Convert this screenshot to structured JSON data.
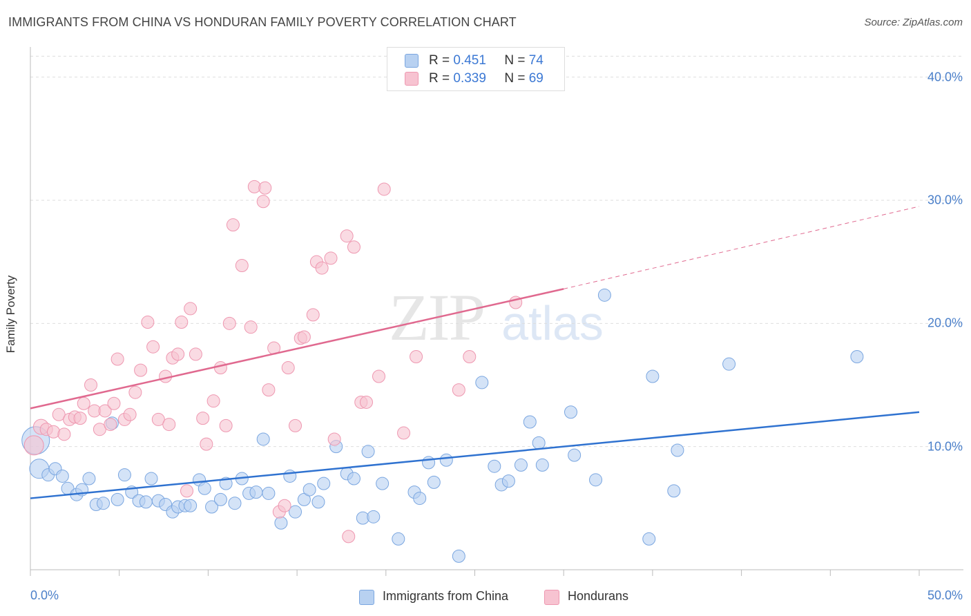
{
  "title": "IMMIGRANTS FROM CHINA VS HONDURAN FAMILY POVERTY CORRELATION CHART",
  "source": "Source: ZipAtlas.com",
  "watermark": {
    "zip": "ZIP",
    "atlas": "atlas"
  },
  "legend_top": {
    "rows": [
      {
        "r_label": "R =",
        "r_value": "0.451",
        "n_label": "N =",
        "n_value": "74"
      },
      {
        "r_label": "R =",
        "r_value": "0.339",
        "n_label": "N =",
        "n_value": "69"
      }
    ]
  },
  "legend_bottom": [
    "Immigrants from China",
    "Hondurans"
  ],
  "colors": {
    "china_fill": "#b8d1f1",
    "china_stroke": "#7aa6e0",
    "china_line": "#2f72d0",
    "honduran_fill": "#f7c3d1",
    "honduran_stroke": "#ee97b0",
    "honduran_line": "#e0698f",
    "tick_text": "#4a7fc9",
    "grid": "#dddddd"
  },
  "chart_data": {
    "type": "scatter",
    "title": "IMMIGRANTS FROM CHINA VS HONDURAN FAMILY POVERTY CORRELATION CHART",
    "xlabel": "",
    "ylabel": "Family Poverty",
    "xlim": [
      0,
      50
    ],
    "ylim": [
      0,
      42
    ],
    "x_tick_labels": [
      "0.0%",
      "50.0%"
    ],
    "y_ticks": [
      10,
      20,
      30,
      40
    ],
    "y_tick_labels": [
      "10.0%",
      "20.0%",
      "30.0%",
      "40.0%"
    ],
    "grid": "horizontal dashed",
    "legend_position": "top-center and bottom",
    "series": [
      {
        "name": "Immigrants from China",
        "r": 0.451,
        "n": 74,
        "trend": {
          "x": [
            0,
            50
          ],
          "y": [
            5.8,
            12.8
          ]
        },
        "points": [
          [
            0.3,
            10.5,
            20
          ],
          [
            0.5,
            8.2,
            14
          ],
          [
            1.0,
            7.7,
            9
          ],
          [
            1.4,
            8.2,
            9
          ],
          [
            1.8,
            7.6,
            9
          ],
          [
            2.1,
            6.6,
            9
          ],
          [
            2.6,
            6.1,
            9
          ],
          [
            2.9,
            6.5,
            9
          ],
          [
            3.3,
            7.4,
            9
          ],
          [
            3.7,
            5.3,
            9
          ],
          [
            4.1,
            5.4,
            9
          ],
          [
            4.6,
            11.9,
            9
          ],
          [
            4.9,
            5.7,
            9
          ],
          [
            5.3,
            7.7,
            9
          ],
          [
            5.7,
            6.3,
            9
          ],
          [
            6.1,
            5.6,
            9
          ],
          [
            6.5,
            5.5,
            9
          ],
          [
            6.8,
            7.4,
            9
          ],
          [
            7.2,
            5.6,
            9
          ],
          [
            7.6,
            5.3,
            9
          ],
          [
            8.0,
            4.7,
            9
          ],
          [
            8.3,
            5.1,
            9
          ],
          [
            8.7,
            5.2,
            9
          ],
          [
            9.0,
            5.2,
            9
          ],
          [
            9.5,
            7.3,
            9
          ],
          [
            9.8,
            6.6,
            9
          ],
          [
            10.2,
            5.1,
            9
          ],
          [
            10.7,
            5.7,
            9
          ],
          [
            11.0,
            7.0,
            9
          ],
          [
            11.5,
            5.4,
            9
          ],
          [
            11.9,
            7.4,
            9
          ],
          [
            12.3,
            6.2,
            9
          ],
          [
            12.7,
            6.3,
            9
          ],
          [
            13.1,
            10.6,
            9
          ],
          [
            13.4,
            6.2,
            9
          ],
          [
            14.1,
            3.8,
            9
          ],
          [
            14.6,
            7.6,
            9
          ],
          [
            14.9,
            4.7,
            9
          ],
          [
            15.4,
            5.7,
            9
          ],
          [
            15.7,
            6.5,
            9
          ],
          [
            16.2,
            5.5,
            9
          ],
          [
            16.5,
            7.0,
            9
          ],
          [
            17.2,
            10.0,
            9
          ],
          [
            17.8,
            7.8,
            9
          ],
          [
            18.2,
            7.4,
            9
          ],
          [
            18.7,
            4.2,
            9
          ],
          [
            19.0,
            9.6,
            9
          ],
          [
            19.3,
            4.3,
            9
          ],
          [
            19.8,
            7.0,
            9
          ],
          [
            20.7,
            2.5,
            9
          ],
          [
            21.6,
            6.3,
            9
          ],
          [
            21.9,
            5.8,
            9
          ],
          [
            22.4,
            8.7,
            9
          ],
          [
            22.7,
            7.1,
            9
          ],
          [
            23.4,
            8.9,
            9
          ],
          [
            24.1,
            1.1,
            9
          ],
          [
            25.4,
            15.2,
            9
          ],
          [
            26.1,
            8.4,
            9
          ],
          [
            26.5,
            6.9,
            9
          ],
          [
            26.9,
            7.2,
            9
          ],
          [
            27.6,
            8.5,
            9
          ],
          [
            28.1,
            12.0,
            9
          ],
          [
            28.6,
            10.3,
            9
          ],
          [
            28.8,
            8.5,
            9
          ],
          [
            30.4,
            12.8,
            9
          ],
          [
            30.6,
            9.3,
            9
          ],
          [
            31.8,
            7.3,
            9
          ],
          [
            32.3,
            22.3,
            9
          ],
          [
            34.8,
            2.5,
            9
          ],
          [
            35.0,
            15.7,
            9
          ],
          [
            36.2,
            6.4,
            9
          ],
          [
            36.4,
            9.7,
            9
          ],
          [
            39.3,
            16.7,
            9
          ],
          [
            46.5,
            17.3,
            9
          ]
        ]
      },
      {
        "name": "Hondurans",
        "r": 0.339,
        "n": 69,
        "trend": {
          "x": [
            0,
            30
          ],
          "y": [
            13.1,
            22.8
          ]
        },
        "trend_extension": {
          "x": [
            30,
            50
          ],
          "y": [
            22.8,
            29.5
          ]
        },
        "points": [
          [
            0.2,
            10.1,
            14
          ],
          [
            0.6,
            11.6,
            11
          ],
          [
            0.9,
            11.4,
            9
          ],
          [
            1.3,
            11.2,
            9
          ],
          [
            1.6,
            12.6,
            9
          ],
          [
            1.9,
            11.0,
            9
          ],
          [
            2.2,
            12.2,
            9
          ],
          [
            2.5,
            12.4,
            9
          ],
          [
            2.8,
            12.3,
            9
          ],
          [
            3.0,
            13.5,
            9
          ],
          [
            3.4,
            15.0,
            9
          ],
          [
            3.6,
            12.9,
            9
          ],
          [
            3.9,
            11.4,
            9
          ],
          [
            4.2,
            12.9,
            9
          ],
          [
            4.5,
            11.8,
            9
          ],
          [
            4.7,
            13.5,
            9
          ],
          [
            4.9,
            17.1,
            9
          ],
          [
            5.3,
            12.2,
            9
          ],
          [
            5.6,
            12.6,
            9
          ],
          [
            5.9,
            14.4,
            9
          ],
          [
            6.2,
            16.2,
            9
          ],
          [
            6.6,
            20.1,
            9
          ],
          [
            6.9,
            18.1,
            9
          ],
          [
            7.2,
            12.2,
            9
          ],
          [
            7.6,
            15.7,
            9
          ],
          [
            7.8,
            11.8,
            9
          ],
          [
            8.0,
            17.2,
            9
          ],
          [
            8.3,
            17.5,
            9
          ],
          [
            8.5,
            20.1,
            9
          ],
          [
            8.8,
            6.4,
            9
          ],
          [
            9.0,
            21.2,
            9
          ],
          [
            9.3,
            17.5,
            9
          ],
          [
            9.7,
            12.3,
            9
          ],
          [
            9.9,
            10.2,
            9
          ],
          [
            10.3,
            13.7,
            9
          ],
          [
            10.7,
            16.4,
            9
          ],
          [
            11.0,
            11.7,
            9
          ],
          [
            11.2,
            20.0,
            9
          ],
          [
            11.4,
            28.0,
            9
          ],
          [
            11.9,
            24.7,
            9
          ],
          [
            12.4,
            19.7,
            9
          ],
          [
            12.6,
            31.1,
            9
          ],
          [
            13.1,
            29.9,
            9
          ],
          [
            13.4,
            14.6,
            9
          ],
          [
            13.7,
            18.0,
            9
          ],
          [
            14.0,
            4.7,
            9
          ],
          [
            14.3,
            5.2,
            9
          ],
          [
            14.5,
            16.4,
            9
          ],
          [
            14.9,
            11.7,
            9
          ],
          [
            15.2,
            18.8,
            9
          ],
          [
            15.4,
            18.9,
            9
          ],
          [
            15.9,
            20.7,
            9
          ],
          [
            16.1,
            25.0,
            9
          ],
          [
            16.4,
            24.5,
            9
          ],
          [
            16.9,
            25.3,
            9
          ],
          [
            17.1,
            10.6,
            9
          ],
          [
            17.8,
            27.1,
            9
          ],
          [
            17.9,
            2.7,
            9
          ],
          [
            18.2,
            26.2,
            9
          ],
          [
            18.6,
            13.6,
            9
          ],
          [
            18.9,
            13.6,
            9
          ],
          [
            19.6,
            15.7,
            9
          ],
          [
            19.9,
            30.9,
            9
          ],
          [
            21.0,
            11.1,
            9
          ],
          [
            21.7,
            17.3,
            9
          ],
          [
            24.1,
            14.6,
            9
          ],
          [
            24.7,
            17.3,
            9
          ],
          [
            27.3,
            21.7,
            9
          ],
          [
            13.2,
            31.0,
            9
          ]
        ]
      }
    ]
  }
}
